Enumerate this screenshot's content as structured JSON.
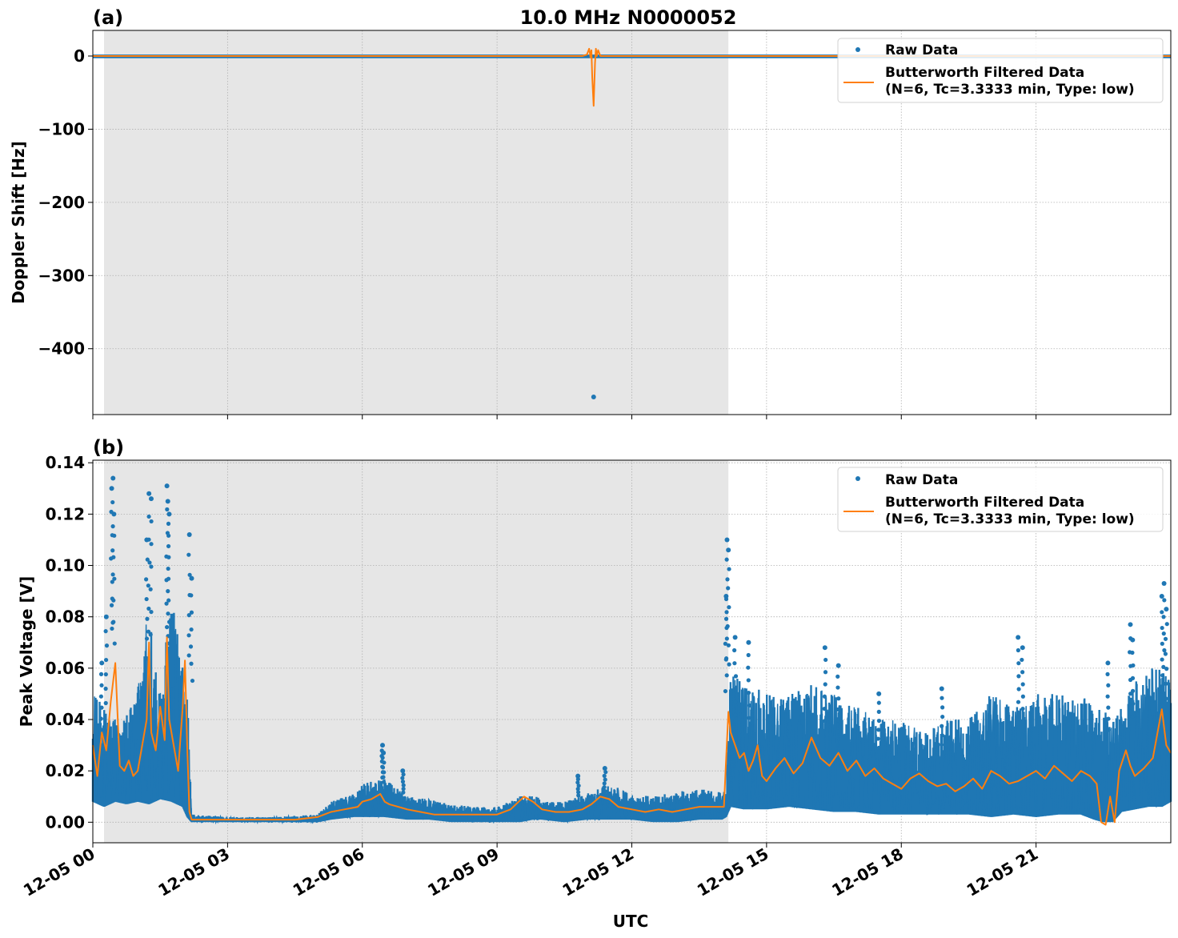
{
  "chart_data": [
    {
      "type": "scatter",
      "panel_label": "(a)",
      "title": "10.0 MHz N0000052",
      "ylabel": "Doppler Shift [Hz]",
      "xlabel": "",
      "xlim_hours": [
        0,
        24
      ],
      "ylim": [
        -490,
        35
      ],
      "x_tick_hours": [
        0,
        3,
        6,
        9,
        12,
        15,
        18,
        21
      ],
      "x_tick_labels": [
        "12-05 00",
        "12-05 03",
        "12-05 06",
        "12-05 09",
        "12-05 12",
        "12-05 15",
        "12-05 18",
        "12-05 21"
      ],
      "x_tick_labels_shown": false,
      "y_ticks": [
        0,
        -100,
        -200,
        -300,
        -400
      ],
      "y_tick_labels": [
        "0",
        "−100",
        "−200",
        "−300",
        "−400"
      ],
      "grid": true,
      "legend_position": "top-right",
      "shaded_interval_hours": [
        0.25,
        14.15
      ],
      "series": [
        {
          "name": "Raw Data",
          "style": "points",
          "color": "#1f77b4",
          "description_band": {
            "x": [
              0,
              24
            ],
            "y_center": 0,
            "y_low": -3,
            "y_high": 2
          },
          "outliers": [
            {
              "x": 11.15,
              "y": -466
            }
          ]
        },
        {
          "name": "Butterworth Filtered Data\n(N=6, Tc=3.3333 min, Type: low)",
          "legend_lines": [
            "Butterworth Filtered Data",
            "(N=6, Tc=3.3333 min, Type: low)"
          ],
          "style": "line",
          "color": "#ff7f0e",
          "x": [
            0,
            10.9,
            11.0,
            11.05,
            11.08,
            11.1,
            11.12,
            11.15,
            11.18,
            11.2,
            11.22,
            11.25,
            11.3,
            11.4,
            24
          ],
          "y": [
            0,
            0,
            2,
            10,
            -2,
            8,
            -30,
            -68,
            -10,
            10,
            0,
            8,
            0,
            0,
            0
          ]
        }
      ]
    },
    {
      "type": "scatter",
      "panel_label": "(b)",
      "title": "",
      "ylabel": "Peak Voltage [V]",
      "xlabel": "UTC",
      "xlim_hours": [
        0,
        24
      ],
      "ylim": [
        -0.008,
        0.141
      ],
      "x_tick_hours": [
        0,
        3,
        6,
        9,
        12,
        15,
        18,
        21
      ],
      "x_tick_labels": [
        "12-05 00",
        "12-05 03",
        "12-05 06",
        "12-05 09",
        "12-05 12",
        "12-05 15",
        "12-05 18",
        "12-05 21"
      ],
      "x_tick_labels_shown": true,
      "y_ticks": [
        0.0,
        0.02,
        0.04,
        0.06,
        0.08,
        0.1,
        0.12,
        0.14
      ],
      "y_tick_labels": [
        "0.00",
        "0.02",
        "0.04",
        "0.06",
        "0.08",
        "0.10",
        "0.12",
        "0.14"
      ],
      "grid": true,
      "legend_position": "top-right",
      "shaded_interval_hours": [
        0.25,
        14.15
      ],
      "series": [
        {
          "name": "Raw Data",
          "style": "points",
          "color": "#1f77b4",
          "envelope": {
            "x": [
              0,
              0.25,
              0.5,
              0.75,
              1.0,
              1.25,
              1.5,
              1.75,
              2.0,
              2.1,
              2.2,
              3.0,
              4.0,
              5.0,
              5.3,
              5.8,
              6.0,
              6.5,
              7.0,
              7.5,
              8.0,
              8.5,
              9.0,
              9.5,
              9.8,
              10.0,
              10.5,
              11.0,
              11.5,
              12.0,
              12.5,
              13.0,
              13.5,
              14.0,
              14.1,
              14.2,
              14.5,
              15.0,
              15.5,
              16.0,
              16.5,
              17.0,
              17.5,
              18.0,
              18.5,
              19.0,
              19.5,
              20.0,
              20.5,
              21.0,
              21.5,
              22.0,
              22.3,
              22.5,
              22.7,
              22.9,
              23.2,
              23.5,
              23.8,
              24.0
            ],
            "low": [
              0.008,
              0.006,
              0.008,
              0.007,
              0.008,
              0.007,
              0.009,
              0.008,
              0.006,
              0.002,
              0.0,
              0.0,
              0.0,
              0.0,
              0.001,
              0.002,
              0.002,
              0.002,
              0.001,
              0.001,
              0.0,
              0.0,
              0.0,
              0.0,
              0.001,
              0.001,
              0.0,
              0.001,
              0.001,
              0.001,
              0.0,
              0.0,
              0.001,
              0.001,
              0.002,
              0.006,
              0.005,
              0.005,
              0.006,
              0.005,
              0.004,
              0.004,
              0.003,
              0.003,
              0.003,
              0.003,
              0.003,
              0.002,
              0.003,
              0.002,
              0.003,
              0.003,
              0.001,
              0.0,
              0.0,
              0.004,
              0.005,
              0.006,
              0.006,
              0.008
            ],
            "high": [
              0.05,
              0.045,
              0.04,
              0.042,
              0.055,
              0.085,
              0.05,
              0.09,
              0.06,
              0.058,
              0.003,
              0.002,
              0.002,
              0.003,
              0.008,
              0.011,
              0.015,
              0.017,
              0.01,
              0.009,
              0.007,
              0.006,
              0.006,
              0.01,
              0.012,
              0.008,
              0.008,
              0.011,
              0.015,
              0.011,
              0.01,
              0.012,
              0.013,
              0.012,
              0.013,
              0.06,
              0.055,
              0.05,
              0.05,
              0.055,
              0.05,
              0.045,
              0.04,
              0.04,
              0.035,
              0.04,
              0.04,
              0.05,
              0.045,
              0.05,
              0.05,
              0.05,
              0.045,
              0.045,
              0.04,
              0.045,
              0.055,
              0.06,
              0.065,
              0.06
            ]
          },
          "spikes": [
            {
              "x": 0.45,
              "y": 0.134
            },
            {
              "x": 0.42,
              "y": 0.13
            },
            {
              "x": 0.47,
              "y": 0.12
            },
            {
              "x": 0.3,
              "y": 0.08
            },
            {
              "x": 0.2,
              "y": 0.062
            },
            {
              "x": 1.25,
              "y": 0.128
            },
            {
              "x": 1.3,
              "y": 0.126
            },
            {
              "x": 1.2,
              "y": 0.11
            },
            {
              "x": 1.65,
              "y": 0.131
            },
            {
              "x": 1.67,
              "y": 0.125
            },
            {
              "x": 1.7,
              "y": 0.12
            },
            {
              "x": 2.15,
              "y": 0.112
            },
            {
              "x": 2.2,
              "y": 0.095
            },
            {
              "x": 6.45,
              "y": 0.03
            },
            {
              "x": 6.47,
              "y": 0.027
            },
            {
              "x": 6.9,
              "y": 0.02
            },
            {
              "x": 11.4,
              "y": 0.021
            },
            {
              "x": 10.8,
              "y": 0.018
            },
            {
              "x": 14.12,
              "y": 0.11
            },
            {
              "x": 14.15,
              "y": 0.106
            },
            {
              "x": 14.1,
              "y": 0.088
            },
            {
              "x": 14.3,
              "y": 0.072
            },
            {
              "x": 14.6,
              "y": 0.07
            },
            {
              "x": 16.3,
              "y": 0.068
            },
            {
              "x": 16.6,
              "y": 0.061
            },
            {
              "x": 20.6,
              "y": 0.072
            },
            {
              "x": 20.7,
              "y": 0.068
            },
            {
              "x": 23.1,
              "y": 0.077
            },
            {
              "x": 23.15,
              "y": 0.071
            },
            {
              "x": 23.85,
              "y": 0.093
            },
            {
              "x": 23.8,
              "y": 0.088
            },
            {
              "x": 23.9,
              "y": 0.083
            },
            {
              "x": 22.6,
              "y": 0.062
            },
            {
              "x": 18.9,
              "y": 0.052
            },
            {
              "x": 17.5,
              "y": 0.05
            }
          ]
        },
        {
          "name": "Butterworth Filtered Data\n(N=6, Tc=3.3333 min, Type: low)",
          "legend_lines": [
            "Butterworth Filtered Data",
            "(N=6, Tc=3.3333 min, Type: low)"
          ],
          "style": "line",
          "color": "#ff7f0e",
          "x": [
            0,
            0.1,
            0.2,
            0.3,
            0.4,
            0.5,
            0.6,
            0.7,
            0.8,
            0.9,
            1.0,
            1.1,
            1.2,
            1.25,
            1.3,
            1.4,
            1.5,
            1.6,
            1.65,
            1.7,
            1.8,
            1.9,
            2.0,
            2.05,
            2.1,
            2.15,
            2.2,
            2.5,
            3.0,
            3.5,
            4.0,
            4.5,
            5.0,
            5.3,
            5.6,
            5.9,
            6.0,
            6.2,
            6.4,
            6.5,
            6.6,
            6.8,
            7.0,
            7.3,
            7.6,
            8.0,
            8.5,
            9.0,
            9.3,
            9.6,
            9.8,
            10.0,
            10.3,
            10.6,
            10.9,
            11.1,
            11.3,
            11.5,
            11.7,
            12.0,
            12.3,
            12.6,
            12.9,
            13.2,
            13.5,
            13.8,
            14.05,
            14.1,
            14.15,
            14.2,
            14.3,
            14.4,
            14.5,
            14.6,
            14.7,
            14.8,
            14.9,
            15.0,
            15.2,
            15.4,
            15.6,
            15.8,
            16.0,
            16.2,
            16.4,
            16.6,
            16.8,
            17.0,
            17.2,
            17.4,
            17.6,
            17.8,
            18.0,
            18.2,
            18.4,
            18.6,
            18.8,
            19.0,
            19.2,
            19.4,
            19.6,
            19.8,
            20.0,
            20.2,
            20.4,
            20.6,
            20.8,
            21.0,
            21.2,
            21.4,
            21.6,
            21.8,
            22.0,
            22.2,
            22.35,
            22.45,
            22.55,
            22.65,
            22.75,
            22.85,
            23.0,
            23.1,
            23.2,
            23.4,
            23.6,
            23.8,
            23.9,
            24.0
          ],
          "y": [
            0.03,
            0.018,
            0.035,
            0.028,
            0.047,
            0.062,
            0.022,
            0.02,
            0.024,
            0.018,
            0.02,
            0.03,
            0.04,
            0.07,
            0.035,
            0.028,
            0.045,
            0.032,
            0.072,
            0.04,
            0.03,
            0.02,
            0.045,
            0.063,
            0.03,
            0.004,
            0.001,
            0.001,
            0.001,
            0.001,
            0.001,
            0.001,
            0.002,
            0.004,
            0.005,
            0.006,
            0.008,
            0.009,
            0.011,
            0.008,
            0.007,
            0.006,
            0.005,
            0.004,
            0.003,
            0.003,
            0.003,
            0.003,
            0.005,
            0.01,
            0.008,
            0.005,
            0.004,
            0.004,
            0.005,
            0.007,
            0.01,
            0.009,
            0.006,
            0.005,
            0.004,
            0.005,
            0.004,
            0.005,
            0.006,
            0.006,
            0.006,
            0.025,
            0.043,
            0.035,
            0.03,
            0.025,
            0.027,
            0.02,
            0.024,
            0.03,
            0.018,
            0.016,
            0.021,
            0.025,
            0.019,
            0.023,
            0.033,
            0.025,
            0.022,
            0.027,
            0.02,
            0.024,
            0.018,
            0.021,
            0.017,
            0.015,
            0.013,
            0.017,
            0.019,
            0.016,
            0.014,
            0.015,
            0.012,
            0.014,
            0.017,
            0.013,
            0.02,
            0.018,
            0.015,
            0.016,
            0.018,
            0.02,
            0.017,
            0.022,
            0.019,
            0.016,
            0.02,
            0.018,
            0.015,
            0.0,
            -0.001,
            0.01,
            0.0,
            0.02,
            0.028,
            0.022,
            0.018,
            0.021,
            0.025,
            0.044,
            0.03,
            0.027
          ]
        }
      ]
    }
  ]
}
